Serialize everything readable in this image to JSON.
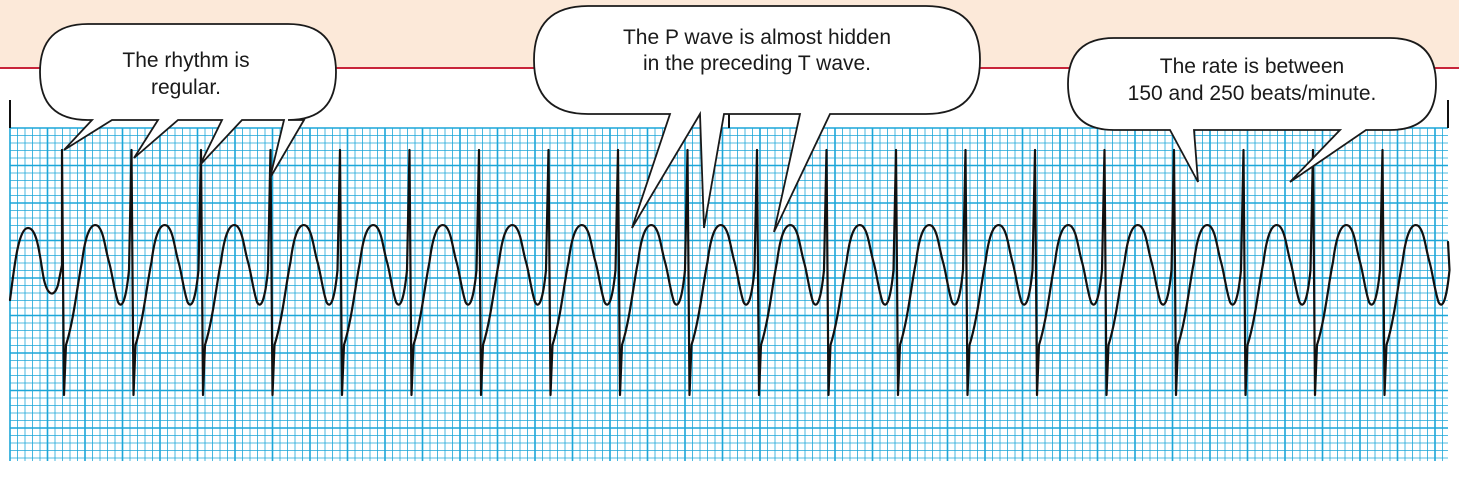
{
  "colors": {
    "band": "#fce9d9",
    "rule": "#c8253a",
    "grid": "#1ca6d8",
    "grid_bg": "#ffffff",
    "trace": "#111111",
    "bubble_fill": "#ffffff",
    "bubble_stroke": "#1a1a1a",
    "text": "#1a1a1a"
  },
  "callouts": [
    {
      "lines": [
        "The rhythm is",
        "regular."
      ]
    },
    {
      "lines": [
        "The P wave is almost hidden",
        "in the preceding T wave."
      ]
    },
    {
      "lines": [
        "The rate is between",
        "150 and 250 beats/minute."
      ]
    }
  ],
  "strip": {
    "complexes": 20,
    "description_icon": "ecg-waveform"
  }
}
